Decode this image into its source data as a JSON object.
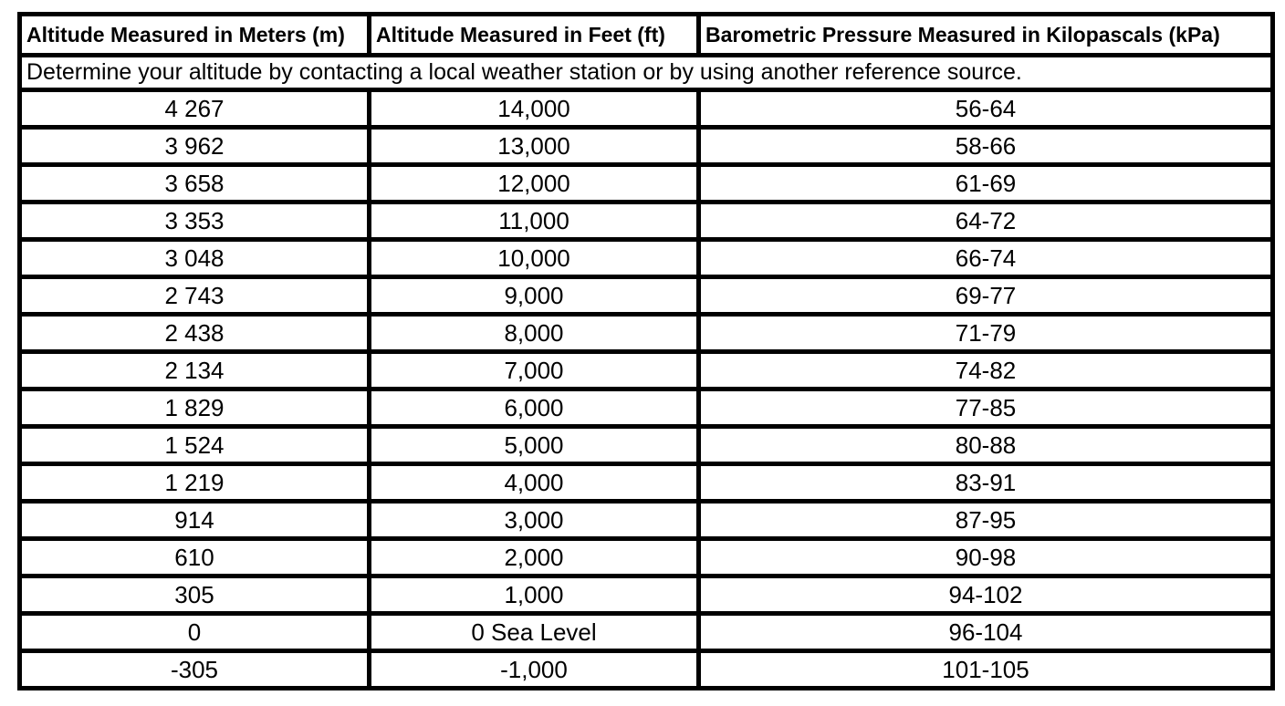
{
  "table": {
    "columns": [
      "Altitude Measured in Meters (m)",
      "Altitude Measured in Feet (ft)",
      "Barometric Pressure Measured in Kilopascals (kPa)"
    ],
    "note": "Determine your altitude by contacting a local weather station or by using another reference source.",
    "rows": [
      [
        "4 267",
        "14,000",
        "56-64"
      ],
      [
        "3 962",
        "13,000",
        "58-66"
      ],
      [
        "3 658",
        "12,000",
        "61-69"
      ],
      [
        "3 353",
        "11,000",
        "64-72"
      ],
      [
        "3 048",
        "10,000",
        "66-74"
      ],
      [
        "2 743",
        "9,000",
        "69-77"
      ],
      [
        "2 438",
        "8,000",
        "71-79"
      ],
      [
        "2 134",
        "7,000",
        "74-82"
      ],
      [
        "1 829",
        "6,000",
        "77-85"
      ],
      [
        "1 524",
        "5,000",
        "80-88"
      ],
      [
        "1 219",
        "4,000",
        "83-91"
      ],
      [
        "914",
        "3,000",
        "87-95"
      ],
      [
        "610",
        "2,000",
        "90-98"
      ],
      [
        "305",
        "1,000",
        "94-102"
      ],
      [
        "0",
        "0 Sea Level",
        "96-104"
      ],
      [
        "-305",
        "-1,000",
        "101-105"
      ]
    ],
    "colors": {
      "border": "#000000",
      "text": "#000000",
      "background": "#ffffff"
    }
  }
}
